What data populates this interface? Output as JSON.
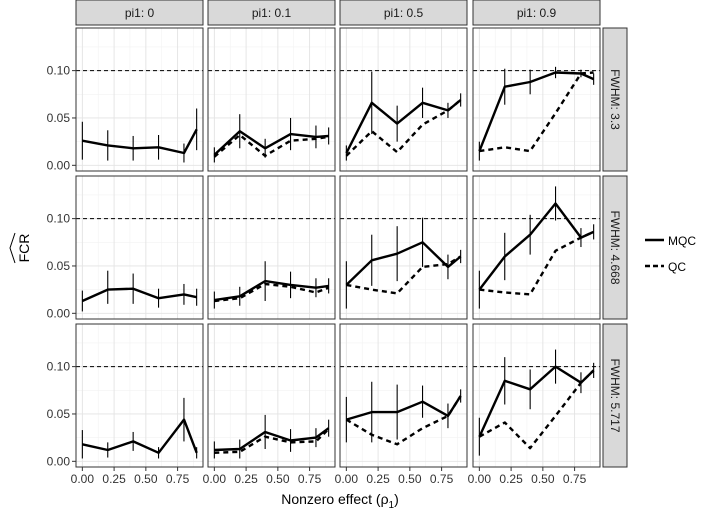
{
  "chart_data": {
    "type": "line",
    "facet_cols": [
      "pi1: 0",
      "pi1: 0.1",
      "pi1: 0.5",
      "pi1: 0.9"
    ],
    "facet_rows": [
      "FWHM: 3.3",
      "FWHM: 4.668",
      "FWHM: 5.717"
    ],
    "x": [
      0.0,
      0.2,
      0.4,
      0.6,
      0.8,
      0.9
    ],
    "x_ticks": [
      "0.00",
      "0.25",
      "0.50",
      "0.75"
    ],
    "x_tick_values": [
      0.0,
      0.25,
      0.5,
      0.75
    ],
    "xlim": [
      -0.05,
      0.95
    ],
    "y_ticks": [
      "0.00",
      "0.05",
      "0.10"
    ],
    "y_tick_values": [
      0.0,
      0.05,
      0.1
    ],
    "ylim": [
      -0.006,
      0.145
    ],
    "xlabel": "Nonzero effect (ρ",
    "xlabel_sub": "1",
    "xlabel_close": ")",
    "ylabel": "FCR",
    "reference_line": 0.1,
    "grid": true,
    "legend_position": "right",
    "series": [
      {
        "name": "MQC",
        "dash": "solid"
      },
      {
        "name": "QC",
        "dash": "dashed"
      }
    ],
    "panels": [
      [
        {
          "MQC": [
            0.026,
            0.021,
            0.018,
            0.019,
            0.013,
            0.038
          ],
          "QC": [],
          "err": [
            [
              0.006,
              0.046
            ],
            [
              0.005,
              0.037
            ],
            [
              0.005,
              0.031
            ],
            [
              0.006,
              0.032
            ],
            [
              0.003,
              0.023
            ],
            [
              0.016,
              0.06
            ]
          ]
        },
        {
          "MQC": [
            0.011,
            0.036,
            0.018,
            0.033,
            0.03,
            0.031
          ],
          "QC": [
            0.009,
            0.032,
            0.01,
            0.026,
            0.028,
            0.03
          ],
          "err": [
            [
              0.003,
              0.019
            ],
            [
              0.018,
              0.054
            ],
            [
              0.008,
              0.028
            ],
            [
              0.016,
              0.05
            ],
            [
              0.018,
              0.042
            ],
            [
              0.022,
              0.04
            ]
          ]
        },
        {
          "MQC": [
            0.013,
            0.066,
            0.044,
            0.066,
            0.058,
            0.069
          ],
          "QC": [
            0.01,
            0.036,
            0.014,
            0.043,
            0.058,
            0.069
          ],
          "err": [
            [
              0.005,
              0.021
            ],
            [
              0.033,
              0.099
            ],
            [
              0.025,
              0.063
            ],
            [
              0.05,
              0.082
            ],
            [
              0.05,
              0.066
            ],
            [
              0.062,
              0.076
            ]
          ]
        },
        {
          "MQC": [
            0.015,
            0.083,
            0.088,
            0.098,
            0.097,
            0.091
          ],
          "QC": [
            0.015,
            0.019,
            0.015,
            0.055,
            0.097,
            0.098
          ],
          "err": [
            [
              0.005,
              0.025
            ],
            [
              0.064,
              0.102
            ],
            [
              0.075,
              0.101
            ],
            [
              0.092,
              0.104
            ],
            [
              0.093,
              0.101
            ],
            [
              0.085,
              0.097
            ]
          ]
        }
      ],
      [
        {
          "MQC": [
            0.013,
            0.025,
            0.026,
            0.016,
            0.02,
            0.017
          ],
          "QC": [],
          "err": [
            [
              0.002,
              0.024
            ],
            [
              0.01,
              0.045
            ],
            [
              0.01,
              0.042
            ],
            [
              0.006,
              0.026
            ],
            [
              0.009,
              0.031
            ],
            [
              0.008,
              0.026
            ]
          ]
        },
        {
          "MQC": [
            0.014,
            0.018,
            0.034,
            0.03,
            0.027,
            0.029
          ],
          "QC": [
            0.013,
            0.016,
            0.031,
            0.028,
            0.022,
            0.027
          ],
          "err": [
            [
              0.005,
              0.023
            ],
            [
              0.008,
              0.028
            ],
            [
              0.013,
              0.055
            ],
            [
              0.016,
              0.044
            ],
            [
              0.017,
              0.037
            ],
            [
              0.021,
              0.037
            ]
          ]
        },
        {
          "MQC": [
            0.03,
            0.056,
            0.063,
            0.075,
            0.049,
            0.06
          ],
          "QC": [
            0.03,
            0.025,
            0.021,
            0.049,
            0.052,
            0.06
          ],
          "err": [
            [
              0.005,
              0.055
            ],
            [
              0.029,
              0.083
            ],
            [
              0.034,
              0.092
            ],
            [
              0.049,
              0.101
            ],
            [
              0.036,
              0.062
            ],
            [
              0.053,
              0.067
            ]
          ]
        },
        {
          "MQC": [
            0.025,
            0.06,
            0.083,
            0.116,
            0.08,
            0.086
          ],
          "QC": [
            0.025,
            0.022,
            0.02,
            0.066,
            0.08,
            0.086
          ],
          "err": [
            [
              0.005,
              0.045
            ],
            [
              0.035,
              0.085
            ],
            [
              0.062,
              0.104
            ],
            [
              0.098,
              0.134
            ],
            [
              0.07,
              0.09
            ],
            [
              0.078,
              0.094
            ]
          ]
        }
      ],
      [
        {
          "MQC": [
            0.018,
            0.012,
            0.021,
            0.009,
            0.044,
            0.009
          ],
          "QC": [],
          "err": [
            [
              0.003,
              0.033
            ],
            [
              0.004,
              0.02
            ],
            [
              0.011,
              0.031
            ],
            [
              0.003,
              0.015
            ],
            [
              0.021,
              0.067
            ],
            [
              0.003,
              0.015
            ]
          ]
        },
        {
          "MQC": [
            0.012,
            0.013,
            0.031,
            0.022,
            0.025,
            0.035
          ],
          "QC": [
            0.009,
            0.01,
            0.026,
            0.02,
            0.021,
            0.034
          ],
          "err": [
            [
              0.003,
              0.021
            ],
            [
              0.003,
              0.023
            ],
            [
              0.013,
              0.049
            ],
            [
              0.01,
              0.034
            ],
            [
              0.015,
              0.035
            ],
            [
              0.026,
              0.044
            ]
          ]
        },
        {
          "MQC": [
            0.044,
            0.052,
            0.052,
            0.063,
            0.048,
            0.069
          ],
          "QC": [
            0.044,
            0.028,
            0.018,
            0.035,
            0.048,
            0.069
          ],
          "err": [
            [
              0.02,
              0.068
            ],
            [
              0.02,
              0.084
            ],
            [
              0.023,
              0.081
            ],
            [
              0.046,
              0.08
            ],
            [
              0.035,
              0.061
            ],
            [
              0.062,
              0.076
            ]
          ]
        },
        {
          "MQC": [
            0.026,
            0.085,
            0.076,
            0.1,
            0.083,
            0.096
          ],
          "QC": [
            0.026,
            0.041,
            0.014,
            0.048,
            0.083,
            0.096
          ],
          "err": [
            [
              0.006,
              0.046
            ],
            [
              0.06,
              0.11
            ],
            [
              0.055,
              0.097
            ],
            [
              0.082,
              0.118
            ],
            [
              0.072,
              0.094
            ],
            [
              0.088,
              0.104
            ]
          ]
        }
      ]
    ]
  }
}
